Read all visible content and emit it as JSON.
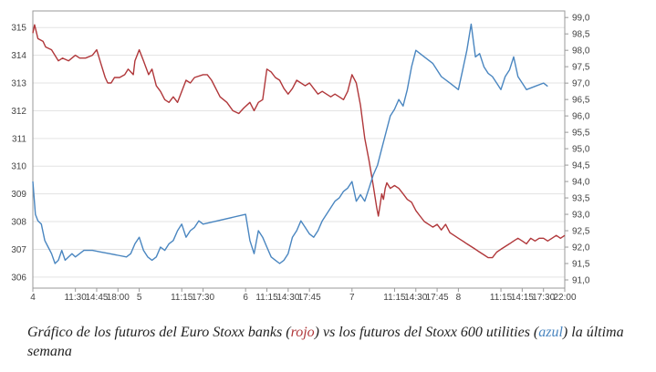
{
  "chart_data": {
    "type": "line",
    "title": "",
    "xlabel": "",
    "ylabel_left": "",
    "ylabel_right": "",
    "grid": true,
    "x_ticks": [
      {
        "x": 0,
        "label": "4"
      },
      {
        "x": 0.5,
        "label": "11:30"
      },
      {
        "x": 0.75,
        "label": "14:45"
      },
      {
        "x": 1.0,
        "label": "18:00"
      },
      {
        "x": 1.25,
        "label": "5"
      },
      {
        "x": 1.75,
        "label": "11:15"
      },
      {
        "x": 2.0,
        "label": "17:30"
      },
      {
        "x": 2.5,
        "label": "6"
      },
      {
        "x": 2.75,
        "label": "11:15"
      },
      {
        "x": 3.0,
        "label": "14:30"
      },
      {
        "x": 3.25,
        "label": "17:45"
      },
      {
        "x": 3.75,
        "label": "7"
      },
      {
        "x": 4.25,
        "label": "11:15"
      },
      {
        "x": 4.5,
        "label": "14:30"
      },
      {
        "x": 4.75,
        "label": "17:45"
      },
      {
        "x": 5.0,
        "label": "8"
      },
      {
        "x": 5.5,
        "label": "11:15"
      },
      {
        "x": 5.75,
        "label": "14:15"
      },
      {
        "x": 6.0,
        "label": "17:30"
      },
      {
        "x": 6.25,
        "label": "22:00"
      }
    ],
    "xlim": [
      0,
      6.25
    ],
    "ylim_left": [
      305.6,
      315.6
    ],
    "ylim_right": [
      90.75,
      99.2
    ],
    "yticks_left": [
      "306",
      "307",
      "308",
      "309",
      "310",
      "311",
      "312",
      "313",
      "314",
      "315"
    ],
    "yticks_right": [
      "91,0",
      "91,5",
      "92,0",
      "92,5",
      "93,0",
      "93,5",
      "94,0",
      "94,5",
      "95,0",
      "95,5",
      "96,0",
      "96,5",
      "97,0",
      "97,5",
      "98,0",
      "98,5",
      "99,0"
    ],
    "series": [
      {
        "color": "#b0373a",
        "axis": "left",
        "x": [
          0,
          0.02,
          0.06,
          0.12,
          0.15,
          0.22,
          0.3,
          0.35,
          0.42,
          0.5,
          0.55,
          0.62,
          0.7,
          0.75,
          0.8,
          0.85,
          0.88,
          0.92,
          0.96,
          1.02,
          1.08,
          1.12,
          1.18,
          1.2,
          1.25,
          1.3,
          1.36,
          1.4,
          1.45,
          1.5,
          1.55,
          1.6,
          1.65,
          1.7,
          1.75,
          1.8,
          1.85,
          1.9,
          2.0,
          2.05,
          2.1,
          2.2,
          2.28,
          2.35,
          2.42,
          2.48,
          2.55,
          2.6,
          2.65,
          2.7,
          2.75,
          2.8,
          2.85,
          2.9,
          2.95,
          3.0,
          3.05,
          3.1,
          3.15,
          3.2,
          3.25,
          3.3,
          3.35,
          3.4,
          3.45,
          3.5,
          3.55,
          3.6,
          3.65,
          3.7,
          3.75,
          3.8,
          3.85,
          3.9,
          3.95,
          4.0,
          4.04,
          4.06,
          4.08,
          4.1,
          4.12,
          4.14,
          4.16,
          4.2,
          4.25,
          4.3,
          4.35,
          4.4,
          4.45,
          4.5,
          4.55,
          4.6,
          4.65,
          4.7,
          4.75,
          4.8,
          4.85,
          4.9,
          4.95,
          5.0,
          5.05,
          5.1,
          5.15,
          5.2,
          5.25,
          5.3,
          5.35,
          5.4,
          5.45,
          5.5,
          5.55,
          5.6,
          5.65,
          5.7,
          5.75,
          5.8,
          5.85,
          5.9,
          5.95,
          6.0,
          6.05,
          6.1,
          6.15,
          6.2,
          6.25
        ],
        "y": [
          314.8,
          315.1,
          314.6,
          314.5,
          314.3,
          314.2,
          313.8,
          313.9,
          313.8,
          314.0,
          313.9,
          313.9,
          314.0,
          314.2,
          313.7,
          313.2,
          313.0,
          313.0,
          313.2,
          313.2,
          313.3,
          313.5,
          313.3,
          313.8,
          314.2,
          313.8,
          313.3,
          313.5,
          312.9,
          312.7,
          312.4,
          312.3,
          312.5,
          312.3,
          312.7,
          313.1,
          313.0,
          313.2,
          313.3,
          313.3,
          313.1,
          312.5,
          312.3,
          312.0,
          311.9,
          312.1,
          312.3,
          312.0,
          312.3,
          312.4,
          313.5,
          313.4,
          313.2,
          313.1,
          312.8,
          312.6,
          312.8,
          313.1,
          313.0,
          312.9,
          313.0,
          312.8,
          312.6,
          312.7,
          312.6,
          312.5,
          312.6,
          312.5,
          312.4,
          312.7,
          313.3,
          313.0,
          312.2,
          311.0,
          310.2,
          309.3,
          308.5,
          308.2,
          308.6,
          309.0,
          308.8,
          309.2,
          309.4,
          309.2,
          309.3,
          309.2,
          309.0,
          308.8,
          308.7,
          308.4,
          308.2,
          308.0,
          307.9,
          307.8,
          307.9,
          307.7,
          307.9,
          307.6,
          307.5,
          307.4,
          307.3,
          307.2,
          307.1,
          307.0,
          306.9,
          306.8,
          306.7,
          306.7,
          306.9,
          307.0,
          307.1,
          307.2,
          307.3,
          307.4,
          307.3,
          307.2,
          307.4,
          307.3,
          307.4,
          307.4,
          307.3,
          307.4,
          307.5,
          307.4,
          307.5
        ]
      },
      {
        "color": "#4a86c0",
        "axis": "right",
        "x": [
          0,
          0.03,
          0.06,
          0.1,
          0.14,
          0.18,
          0.22,
          0.26,
          0.3,
          0.34,
          0.38,
          0.42,
          0.46,
          0.5,
          0.55,
          0.6,
          0.7,
          0.8,
          0.9,
          1.0,
          1.1,
          1.15,
          1.2,
          1.25,
          1.3,
          1.35,
          1.4,
          1.45,
          1.5,
          1.55,
          1.6,
          1.65,
          1.7,
          1.75,
          1.8,
          1.85,
          1.9,
          1.95,
          2.0,
          2.5,
          2.55,
          2.6,
          2.65,
          2.7,
          2.75,
          2.8,
          2.85,
          2.9,
          2.95,
          3.0,
          3.05,
          3.1,
          3.15,
          3.2,
          3.25,
          3.3,
          3.35,
          3.4,
          3.45,
          3.5,
          3.55,
          3.6,
          3.65,
          3.7,
          3.75,
          3.8,
          3.85,
          3.9,
          3.95,
          4.0,
          4.05,
          4.1,
          4.15,
          4.2,
          4.25,
          4.3,
          4.35,
          4.4,
          4.45,
          4.5,
          4.6,
          4.7,
          4.8,
          4.9,
          5.0,
          5.05,
          5.1,
          5.15,
          5.2,
          5.25,
          5.3,
          5.35,
          5.4,
          5.45,
          5.5,
          5.55,
          5.6,
          5.65,
          5.7,
          5.75,
          5.8,
          5.9,
          6.0,
          6.05
        ],
        "y": [
          94.0,
          93.0,
          92.8,
          92.7,
          92.2,
          92.0,
          91.8,
          91.5,
          91.6,
          91.9,
          91.6,
          91.7,
          91.8,
          91.7,
          91.8,
          91.9,
          91.9,
          91.85,
          91.8,
          91.75,
          91.7,
          91.8,
          92.1,
          92.3,
          91.9,
          91.7,
          91.6,
          91.7,
          92.0,
          91.9,
          92.1,
          92.2,
          92.5,
          92.7,
          92.3,
          92.5,
          92.6,
          92.8,
          92.7,
          93.0,
          92.2,
          91.8,
          92.5,
          92.3,
          92.0,
          91.7,
          91.6,
          91.5,
          91.6,
          91.8,
          92.3,
          92.5,
          92.8,
          92.6,
          92.4,
          92.3,
          92.5,
          92.8,
          93.0,
          93.2,
          93.4,
          93.5,
          93.7,
          93.8,
          94.0,
          93.4,
          93.6,
          93.4,
          93.8,
          94.2,
          94.5,
          95.0,
          95.5,
          96.0,
          96.2,
          96.5,
          96.3,
          96.8,
          97.5,
          98.0,
          97.8,
          97.6,
          97.2,
          97.0,
          96.8,
          97.4,
          98.0,
          98.8,
          97.8,
          97.9,
          97.5,
          97.3,
          97.2,
          97.0,
          96.8,
          97.2,
          97.4,
          97.8,
          97.2,
          97.0,
          96.8,
          96.9,
          97.0,
          96.9
        ]
      }
    ]
  },
  "caption": {
    "part1": "Gráfico de los futuros del Euro Stoxx banks (",
    "red_word": "rojo",
    "part2": ") vs los futuros del Stoxx 600 utilities (",
    "blue_word": "azul",
    "part3": ") la última semana"
  }
}
